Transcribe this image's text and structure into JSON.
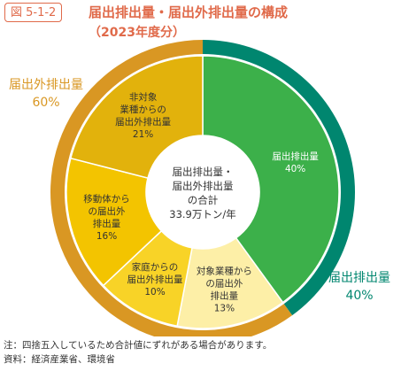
{
  "header": {
    "figure_number": "図 5-1-2",
    "title": "届出排出量・届出外排出量の構成",
    "subtitle": "（2023年度分）"
  },
  "chart_data": {
    "type": "pie",
    "variant": "donut",
    "center_label": [
      "届出排出量・",
      "届出外排出量",
      "の合計",
      "33.9万トン/年"
    ],
    "inner_slices": [
      {
        "label_lines": [
          "届出排出量",
          "40%"
        ],
        "value": 40,
        "color": "#3cb04a",
        "text_color": "#ffffff"
      },
      {
        "label_lines": [
          "対象業種から",
          "の届出外",
          "排出量",
          "13%"
        ],
        "value": 13,
        "color": "#fdefa7",
        "text_color": "#333333"
      },
      {
        "label_lines": [
          "家庭からの",
          "届出外排出量",
          "10%"
        ],
        "value": 10,
        "color": "#f8d327",
        "text_color": "#333333"
      },
      {
        "label_lines": [
          "移動体から",
          "の届出外",
          "排出量",
          "16%"
        ],
        "value": 16,
        "color": "#f3c400",
        "text_color": "#333333"
      },
      {
        "label_lines": [
          "非対象",
          "業種からの",
          "届出外排出量",
          "21%"
        ],
        "value": 21,
        "color": "#e2b20c",
        "text_color": "#333333"
      }
    ],
    "outer_ring": [
      {
        "name": "届出排出量",
        "value": 40,
        "color": "#00866f",
        "label": "届出排出量",
        "percent": "40%"
      },
      {
        "name": "届出外排出量",
        "value": 60,
        "color": "#d99723",
        "label": "届出外排出量",
        "percent": "60%"
      }
    ]
  },
  "notes": [
    "注：四捨五入しているため合計値にずれがある場合があります。",
    "資料：経済産業省、環境省"
  ]
}
